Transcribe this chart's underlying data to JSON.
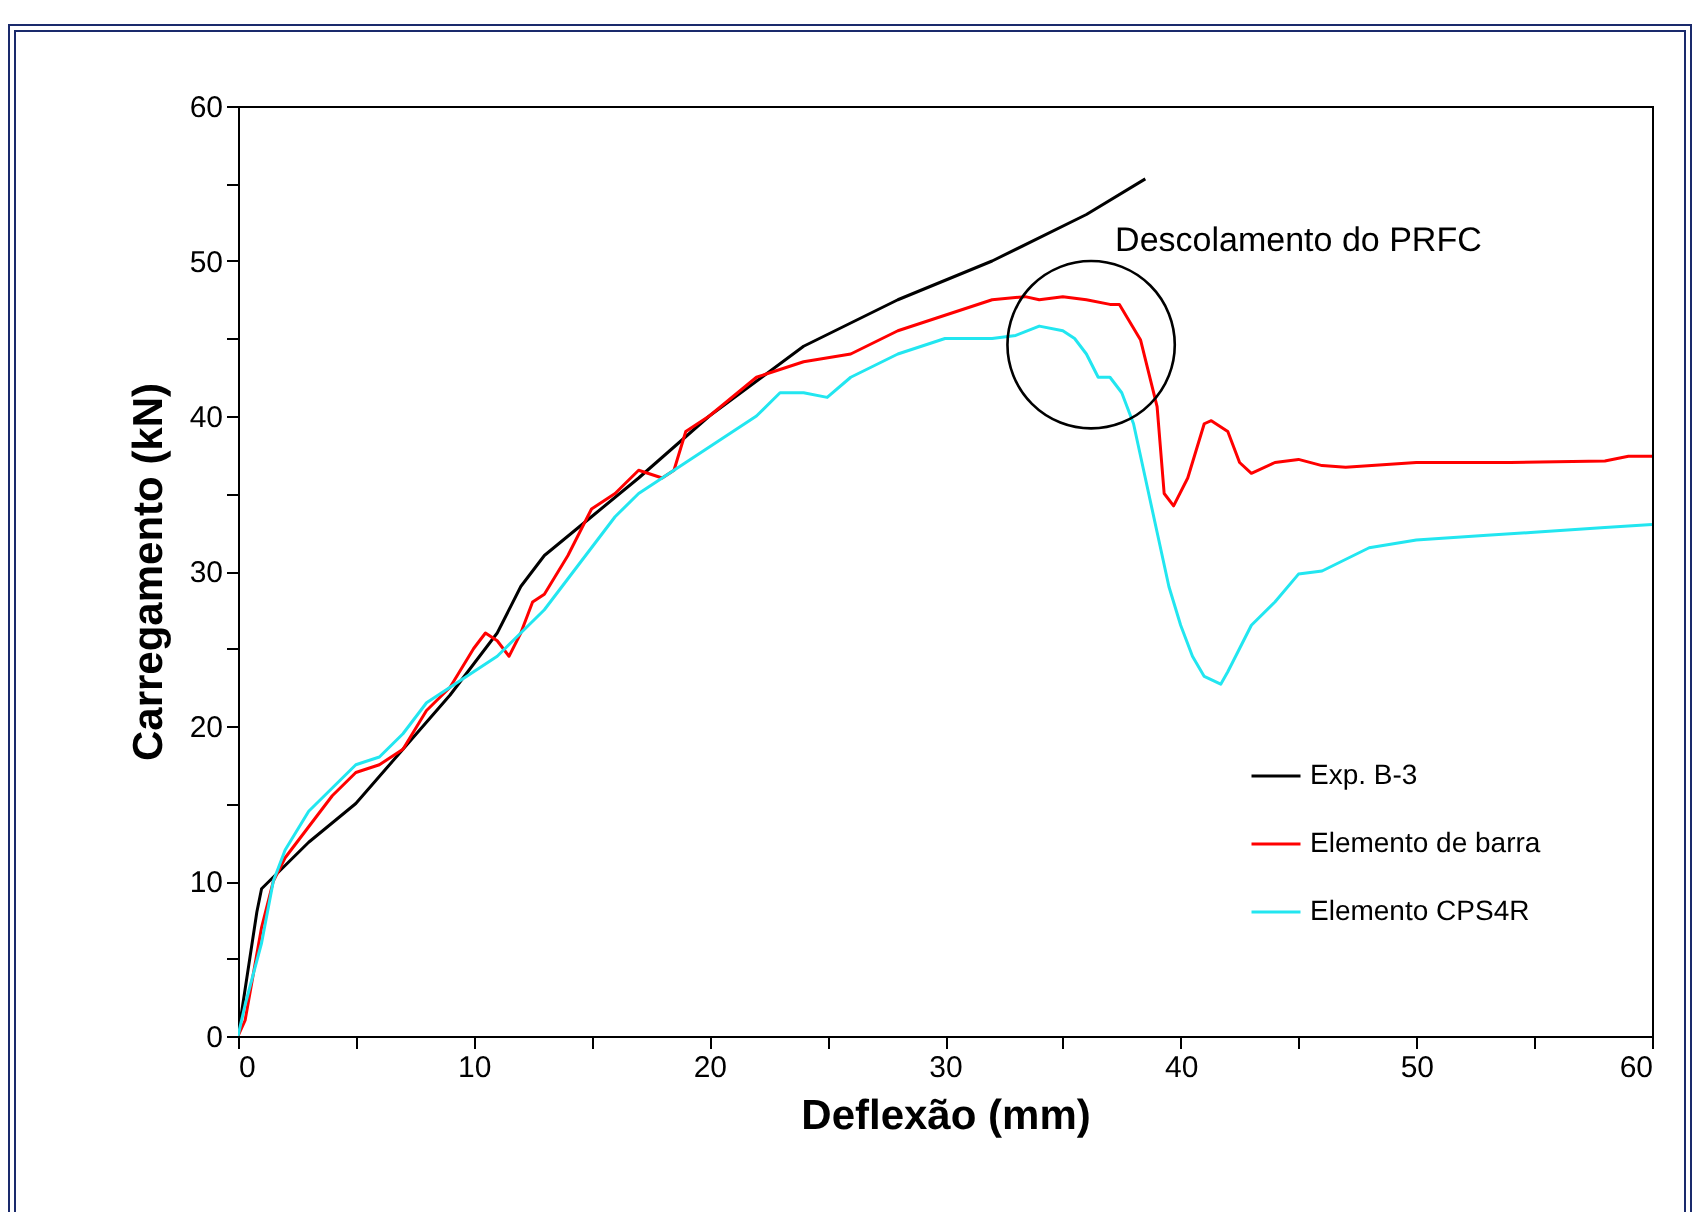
{
  "chart_data": {
    "type": "line",
    "xlabel": "Deflexão (mm)",
    "ylabel": "Carregamento (kN)",
    "xlim": [
      0,
      60
    ],
    "ylim": [
      0,
      60
    ],
    "xticks": [
      0,
      {
        "value": 5,
        "label": null
      },
      10,
      {
        "value": 15,
        "label": null
      },
      20,
      {
        "value": 25,
        "label": null
      },
      30,
      {
        "value": 35,
        "label": null
      },
      40,
      {
        "value": 45,
        "label": null
      },
      50,
      {
        "value": 55,
        "label": null
      },
      60
    ],
    "yticks": [
      0,
      {
        "value": 5,
        "label": null
      },
      10,
      {
        "value": 15,
        "label": null
      },
      20,
      {
        "value": 25,
        "label": null
      },
      30,
      {
        "value": 35,
        "label": null
      },
      40,
      {
        "value": 45,
        "label": null
      },
      50,
      {
        "value": 55,
        "label": null
      },
      60
    ],
    "grid": false,
    "legend": "bottom right",
    "marker": "none",
    "line_style": "solid",
    "annotations": [
      {
        "text": "Descolamento do PRFC",
        "x": 36.2,
        "y": 44.6
      }
    ],
    "series": [
      {
        "name": "Exp. B-3",
        "color": "#000000",
        "x": [
          0,
          0.3,
          0.8,
          1,
          2,
          3,
          5,
          7,
          9,
          10,
          11,
          12,
          13,
          15,
          17,
          20,
          24,
          28,
          32,
          36,
          38.5
        ],
        "values": [
          0,
          3,
          8,
          9.5,
          11,
          12.5,
          15,
          18.5,
          22,
          24,
          26,
          29,
          31,
          33.5,
          36,
          40,
          44.5,
          47.5,
          50,
          53,
          55.3
        ]
      },
      {
        "name": "Elemento de barra",
        "color": "#ff0000",
        "x": [
          0,
          0.3,
          1,
          1.5,
          2,
          3,
          4,
          5,
          6,
          7,
          8,
          9,
          10,
          10.5,
          11,
          11.5,
          12,
          12.5,
          13,
          14,
          15,
          16,
          17,
          18,
          18.5,
          19,
          20,
          22,
          24,
          26,
          28,
          30,
          32,
          33.4,
          34,
          35,
          36,
          37,
          37.4,
          38.3,
          39,
          39.3,
          39.7,
          40.3,
          41,
          41.3,
          42,
          42.5,
          43,
          44,
          45,
          46,
          47,
          50,
          54,
          58,
          59,
          60
        ],
        "values": [
          0,
          1,
          7,
          10,
          11.5,
          13.5,
          15.5,
          17,
          17.5,
          18.5,
          21,
          22.5,
          25,
          26,
          25.5,
          24.5,
          26,
          28,
          28.5,
          31,
          34,
          35,
          36.5,
          36,
          36.5,
          39,
          40,
          42.5,
          43.5,
          44,
          45.5,
          46.5,
          47.5,
          47.7,
          47.5,
          47.7,
          47.5,
          47.2,
          47.2,
          44.9,
          40.6,
          35,
          34.2,
          36,
          39.5,
          39.7,
          39,
          37,
          36.3,
          37,
          37.2,
          36.8,
          36.7,
          37,
          37,
          37.1,
          37.4,
          37.4
        ]
      },
      {
        "name": "Elemento CPS4R",
        "color": "#22e6f0",
        "x": [
          0,
          0.3,
          1,
          1.5,
          2,
          3,
          4,
          5,
          6,
          7,
          8,
          9,
          10,
          11,
          12,
          13,
          14,
          15,
          16,
          17,
          18,
          19,
          20,
          22,
          23,
          24,
          25,
          26,
          28,
          30,
          32,
          33,
          34,
          35,
          35.5,
          36,
          36.5,
          37,
          37.5,
          38,
          38.5,
          39,
          39.5,
          40,
          40.5,
          41,
          41.7,
          42,
          42.5,
          43,
          44,
          45,
          46,
          48,
          50,
          53,
          55,
          58,
          60
        ],
        "values": [
          0,
          2,
          6,
          10,
          12,
          14.5,
          16,
          17.5,
          18,
          19.5,
          21.5,
          22.5,
          23.5,
          24.5,
          26,
          27.5,
          29.5,
          31.5,
          33.5,
          35,
          36,
          37,
          38,
          40,
          41.5,
          41.5,
          41.2,
          42.5,
          44,
          45,
          45,
          45.2,
          45.8,
          45.5,
          45,
          44,
          42.5,
          42.5,
          41.5,
          39.5,
          36,
          32.5,
          29,
          26.5,
          24.5,
          23.2,
          22.7,
          23.5,
          25,
          26.5,
          28,
          29.8,
          30,
          31.5,
          32,
          32.3,
          32.5,
          32.8,
          33
        ]
      }
    ]
  }
}
